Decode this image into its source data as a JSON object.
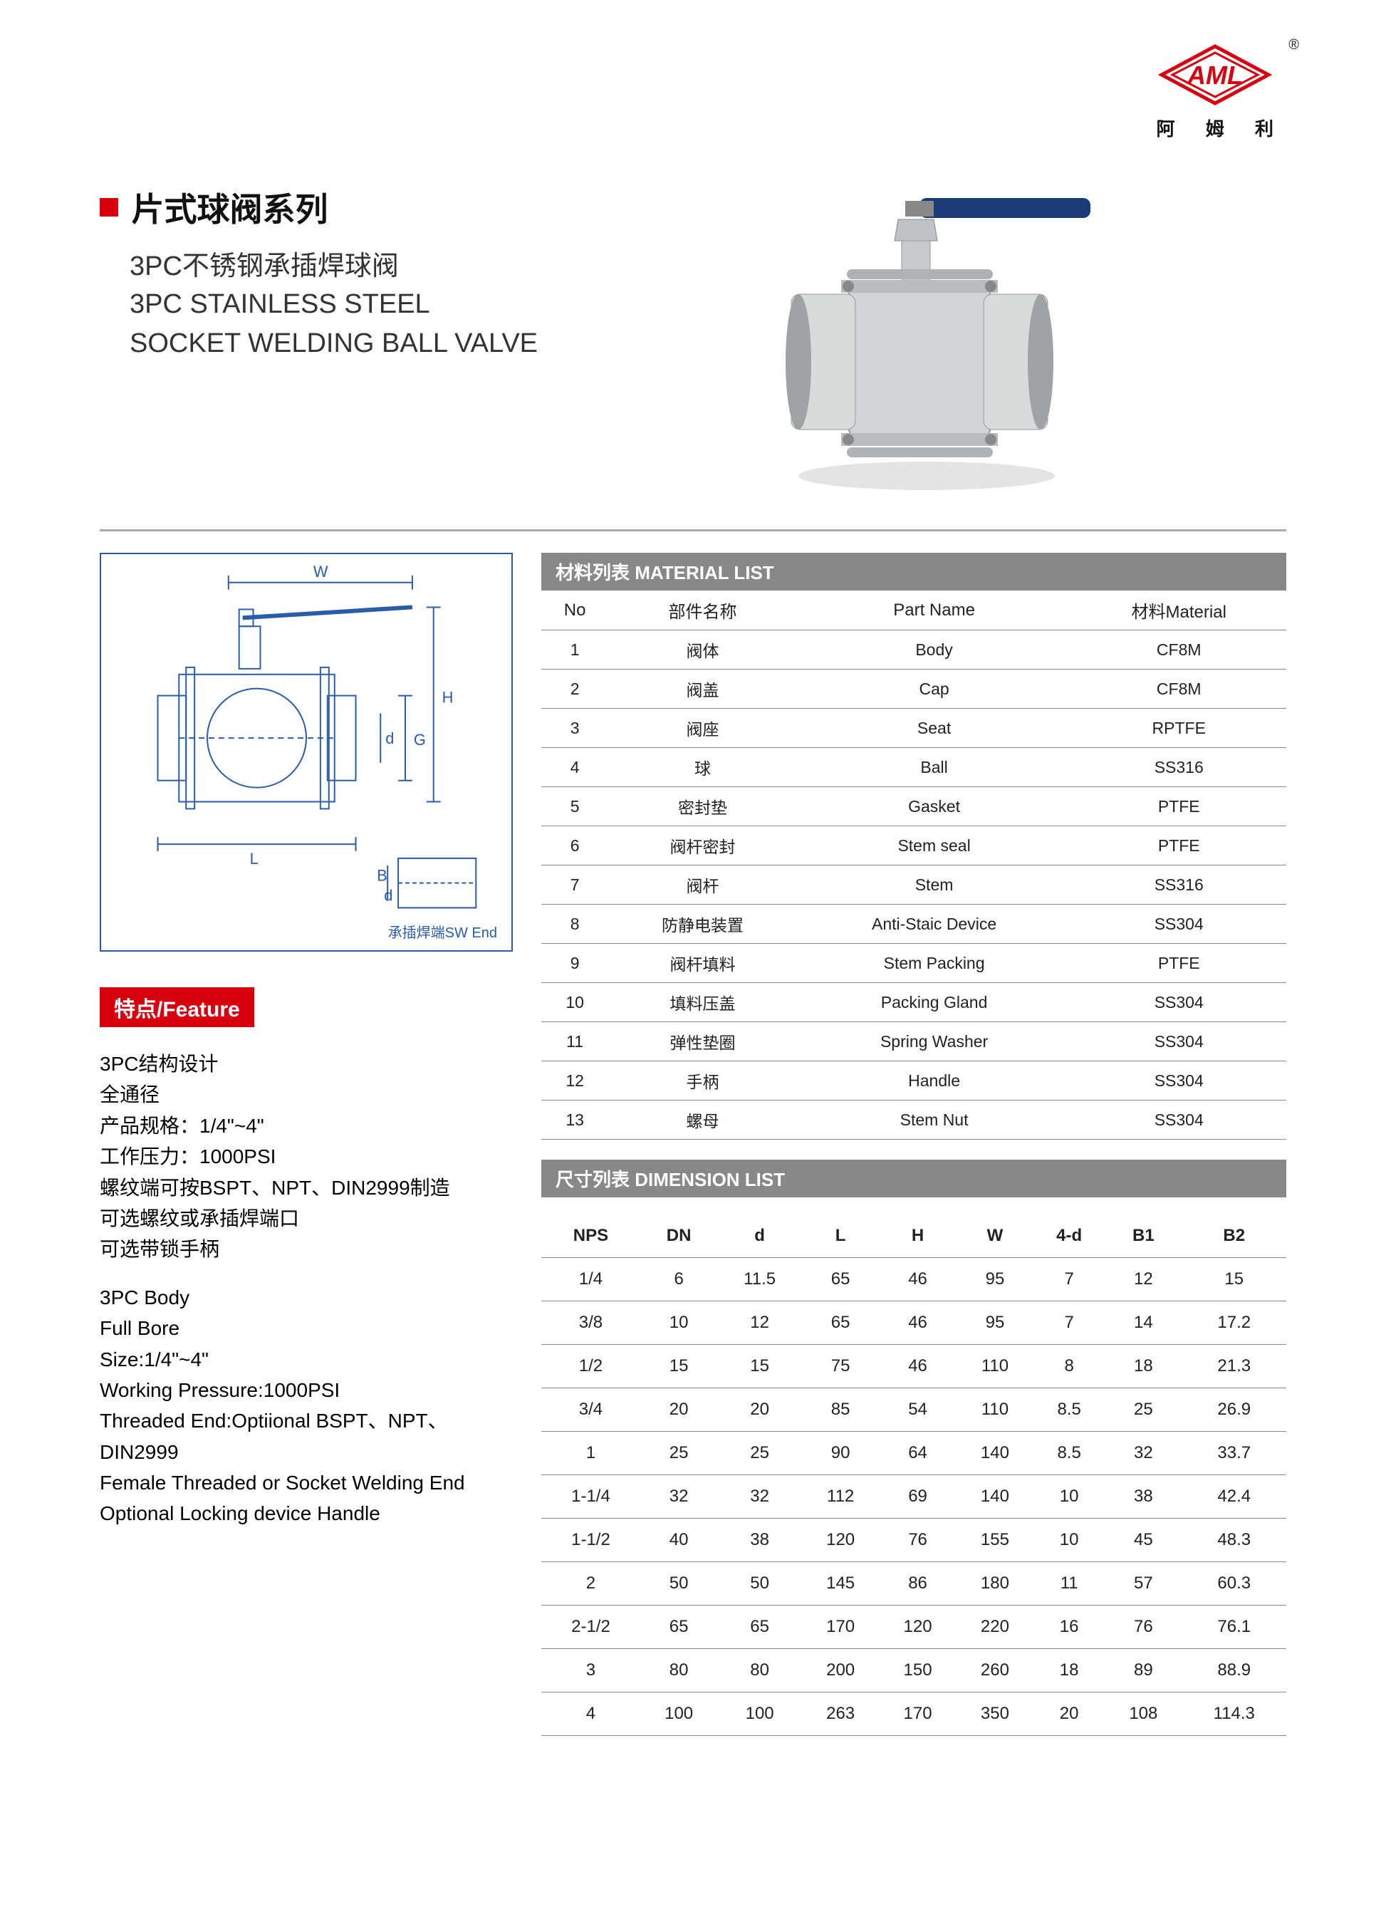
{
  "logo": {
    "text": "AML",
    "text_cn": "阿 姆 利",
    "reg": "®",
    "color": "#d7000f"
  },
  "titles": {
    "series_cn": "片式球阀系列",
    "product_cn": "3PC不锈钢承插焊球阀",
    "product_en1": "3PC STAINLESS STEEL",
    "product_en2": "SOCKET WELDING BALL VALVE"
  },
  "diagram": {
    "labels": {
      "W": "W",
      "H": "H",
      "G": "G",
      "d": "d",
      "L": "L",
      "B": "B",
      "d2": "d"
    },
    "caption": "承插焊端SW End"
  },
  "feature": {
    "header": "特点/Feature",
    "lines_cn": [
      "3PC结构设计",
      "全通径",
      "产品规格：1/4\"~4\"",
      "工作压力：1000PSI",
      "螺纹端可按BSPT、NPT、DIN2999制造",
      "可选螺纹或承插焊端口",
      "可选带锁手柄"
    ],
    "lines_en": [
      "3PC Body",
      "Full Bore",
      "Size:1/4\"~4\"",
      "Working Pressure:1000PSI",
      "Threaded End:Optiional BSPT、NPT、DIN2999",
      "Female Threaded or Socket Welding End",
      "Optional Locking device Handle"
    ]
  },
  "material_list": {
    "header": "材料列表 MATERIAL LIST",
    "columns": [
      "No",
      "部件名称",
      "Part Name",
      "材料Material"
    ],
    "rows": [
      [
        "1",
        "阀体",
        "Body",
        "CF8M"
      ],
      [
        "2",
        "阀盖",
        "Cap",
        "CF8M"
      ],
      [
        "3",
        "阀座",
        "Seat",
        "RPTFE"
      ],
      [
        "4",
        "球",
        "Ball",
        "SS316"
      ],
      [
        "5",
        "密封垫",
        "Gasket",
        "PTFE"
      ],
      [
        "6",
        "阀杆密封",
        "Stem seal",
        "PTFE"
      ],
      [
        "7",
        "阀杆",
        "Stem",
        "SS316"
      ],
      [
        "8",
        "防静电装置",
        "Anti-Staic Device",
        "SS304"
      ],
      [
        "9",
        "阀杆填料",
        "Stem Packing",
        "PTFE"
      ],
      [
        "10",
        "填料压盖",
        "Packing Gland",
        "SS304"
      ],
      [
        "11",
        "弹性垫圈",
        "Spring Washer",
        "SS304"
      ],
      [
        "12",
        "手柄",
        "Handle",
        "SS304"
      ],
      [
        "13",
        "螺母",
        "Stem Nut",
        "SS304"
      ]
    ]
  },
  "dimension_list": {
    "header": "尺寸列表 DIMENSION LIST",
    "columns": [
      "NPS",
      "DN",
      "d",
      "L",
      "H",
      "W",
      "4-d",
      "B1",
      "B2"
    ],
    "rows": [
      [
        "1/4",
        "6",
        "11.5",
        "65",
        "46",
        "95",
        "7",
        "12",
        "15"
      ],
      [
        "3/8",
        "10",
        "12",
        "65",
        "46",
        "95",
        "7",
        "14",
        "17.2"
      ],
      [
        "1/2",
        "15",
        "15",
        "75",
        "46",
        "110",
        "8",
        "18",
        "21.3"
      ],
      [
        "3/4",
        "20",
        "20",
        "85",
        "54",
        "110",
        "8.5",
        "25",
        "26.9"
      ],
      [
        "1",
        "25",
        "25",
        "90",
        "64",
        "140",
        "8.5",
        "32",
        "33.7"
      ],
      [
        "1-1/4",
        "32",
        "32",
        "112",
        "69",
        "140",
        "10",
        "38",
        "42.4"
      ],
      [
        "1-1/2",
        "40",
        "38",
        "120",
        "76",
        "155",
        "10",
        "45",
        "48.3"
      ],
      [
        "2",
        "50",
        "50",
        "145",
        "86",
        "180",
        "11",
        "57",
        "60.3"
      ],
      [
        "2-1/2",
        "65",
        "65",
        "170",
        "120",
        "220",
        "16",
        "76",
        "76.1"
      ],
      [
        "3",
        "80",
        "80",
        "200",
        "150",
        "260",
        "18",
        "89",
        "88.9"
      ],
      [
        "4",
        "100",
        "100",
        "263",
        "170",
        "350",
        "20",
        "108",
        "114.3"
      ]
    ]
  },
  "colors": {
    "accent": "#d7000f",
    "header_bg": "#888888",
    "diagram_border": "#2a5caa",
    "handle": "#1a3a7a",
    "steel": "#cfd2d4"
  }
}
